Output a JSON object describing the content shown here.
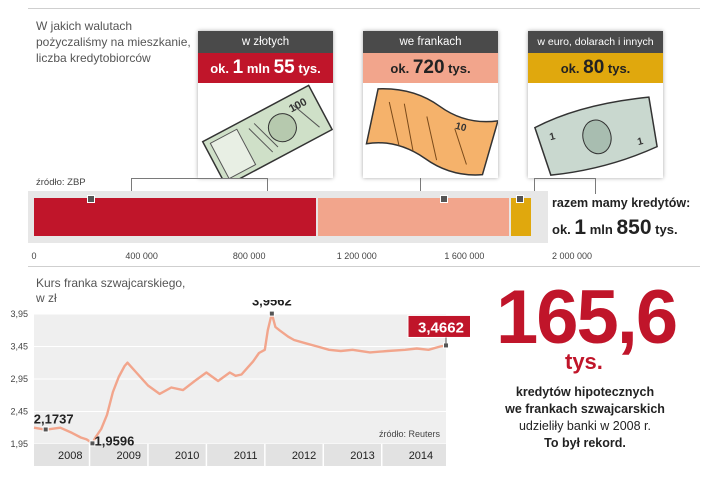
{
  "intro_text": "W jakich walutach pożyczaliśmy na mieszkanie, liczba kredytobiorców",
  "cards": [
    {
      "title": "w złotych",
      "value_prefix": "ok.",
      "value_main": "1",
      "value_unit": "mln",
      "value_rest": "55",
      "value_suffix": "tys.",
      "value_bg": "#c0152a",
      "value_color": "#ffffff"
    },
    {
      "title": "we frankach",
      "value_prefix": "ok.",
      "value_main": "720",
      "value_unit": "",
      "value_rest": "",
      "value_suffix": "tys.",
      "value_bg": "#f2a58c",
      "value_color": "#222222"
    },
    {
      "title": "w euro, dolarach i innych",
      "value_prefix": "ok.",
      "value_main": "80",
      "value_unit": "",
      "value_rest": "",
      "value_suffix": "tys.",
      "value_bg": "#e0a80d",
      "value_color": "#222222"
    }
  ],
  "source_top": "źródło: ZBP",
  "total": {
    "label": "razem mamy kredytów:",
    "prefix": "ok.",
    "main": "1",
    "unit": "mln",
    "rest": "850",
    "suffix": "tys."
  },
  "line_title": "Kurs franka szwajcarskiego, w zł",
  "big_number": "165,6",
  "big_unit": "tys.",
  "note_bold_1": "kredytów hipotecznych",
  "note_bold_2": "we frankach szwajcarskich",
  "note_line_3": "udzieliły banki w 2008 r.",
  "note_bold_4": "To był rekord.",
  "chart_data": [
    {
      "type": "bar",
      "stacked": true,
      "orientation": "horizontal",
      "series": [
        {
          "name": "w złotych",
          "values": [
            1055000
          ],
          "color": "#c0152a"
        },
        {
          "name": "we frankach",
          "values": [
            720000
          ],
          "color": "#f2a58c"
        },
        {
          "name": "w euro, dolarach i innych",
          "values": [
            80000
          ],
          "color": "#e0a80d"
        }
      ],
      "xlim": [
        0,
        2000000
      ],
      "x_ticks": [
        "0",
        "400 000",
        "800 000",
        "1 200 000",
        "1 600 000",
        "2 000 000"
      ],
      "x_tick_values": [
        0,
        400000,
        800000,
        1200000,
        1600000,
        2000000
      ]
    },
    {
      "type": "line",
      "color": "#f2a58c",
      "x": [
        2007.55,
        2007.75,
        2008.0,
        2008.2,
        2008.35,
        2008.45,
        2008.55,
        2008.6,
        2008.7,
        2008.8,
        2008.9,
        2009.0,
        2009.1,
        2009.15,
        2009.3,
        2009.5,
        2009.7,
        2009.9,
        2010.1,
        2010.3,
        2010.5,
        2010.7,
        2010.9,
        2011.0,
        2011.1,
        2011.2,
        2011.3,
        2011.4,
        2011.5,
        2011.55,
        2011.62,
        2011.68,
        2011.75,
        2011.9,
        2012.0,
        2012.2,
        2012.4,
        2012.6,
        2012.8,
        2013.0,
        2013.3,
        2013.6,
        2013.9,
        2014.1,
        2014.3,
        2014.5,
        2014.6
      ],
      "y": [
        2.2,
        2.17,
        2.2,
        2.12,
        2.05,
        2.02,
        1.96,
        2.05,
        2.18,
        2.4,
        2.75,
        2.98,
        3.15,
        3.2,
        3.05,
        2.85,
        2.72,
        2.82,
        2.78,
        2.92,
        3.05,
        2.92,
        3.05,
        3.0,
        3.02,
        3.12,
        3.22,
        3.35,
        3.4,
        3.7,
        3.9562,
        3.75,
        3.7,
        3.6,
        3.55,
        3.5,
        3.45,
        3.4,
        3.38,
        3.4,
        3.36,
        3.38,
        3.4,
        3.42,
        3.4,
        3.45,
        3.4662
      ],
      "ylim": [
        1.95,
        3.95
      ],
      "xlim": [
        2007.55,
        2014.6
      ],
      "y_ticks": [
        "3,95",
        "3,45",
        "2,95",
        "2,45",
        "1,95"
      ],
      "y_tick_values": [
        3.95,
        3.45,
        2.95,
        2.45,
        1.95
      ],
      "x_ticks": [
        "2008",
        "2009",
        "2010",
        "2011",
        "2012",
        "2013",
        "2014"
      ],
      "x_tick_values": [
        2008.0,
        2009.0,
        2010.0,
        2011.0,
        2012.0,
        2013.0,
        2014.0
      ],
      "annotations": [
        {
          "text": "2,1737",
          "x": 2007.75,
          "y": 2.1737
        },
        {
          "text": "1,9596",
          "x": 2008.55,
          "y": 1.9596
        },
        {
          "text": "3,9562",
          "x": 2011.62,
          "y": 3.9562
        },
        {
          "text": "3,4662",
          "x": 2014.6,
          "y": 3.4662,
          "highlight": true
        }
      ],
      "source": "źródło: Reuters"
    }
  ],
  "colors": {
    "red": "#c0152a",
    "salmon": "#f2a58c",
    "gold": "#e0a80d",
    "dark": "#4a4a4a",
    "panel": "#e7e7e7"
  }
}
